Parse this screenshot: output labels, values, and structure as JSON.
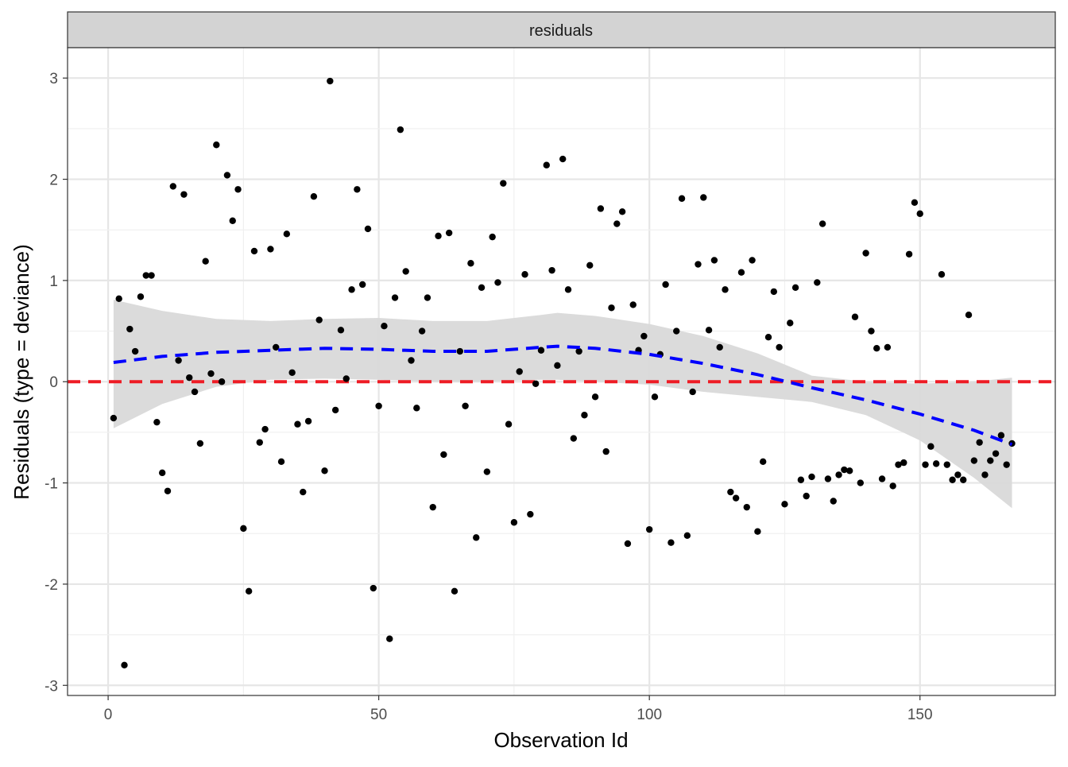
{
  "chart_data": {
    "type": "scatter",
    "facet_label": "residuals",
    "xlabel": "Observation Id",
    "ylabel": "Residuals (type = deviance)",
    "xlim": [
      -7.5,
      175
    ],
    "ylim": [
      -3.1,
      3.3
    ],
    "x_ticks": [
      0,
      50,
      100,
      150
    ],
    "x_tick_labels": [
      "0",
      "50",
      "100",
      "150"
    ],
    "y_ticks": [
      -3,
      -2,
      -1,
      0,
      1,
      2,
      3
    ],
    "y_tick_labels": [
      "-3",
      "-2",
      "-1",
      "0",
      "1",
      "2",
      "3"
    ],
    "grid": true,
    "reference_line": {
      "y": 0,
      "color": "#ee1c25",
      "style": "dashed"
    },
    "smooth_color": "#0000ff",
    "point_color": "#000000",
    "band_color": "#d9d9d9",
    "points_y": [
      -0.36,
      0.82,
      -2.8,
      0.52,
      0.3,
      0.84,
      1.05,
      1.05,
      -0.4,
      -0.9,
      -1.08,
      1.93,
      0.21,
      1.85,
      0.04,
      -0.1,
      -0.61,
      1.19,
      0.08,
      2.34,
      0.0,
      2.04,
      1.59,
      1.9,
      -1.45,
      -2.07,
      1.29,
      -0.6,
      -0.47,
      1.31,
      0.34,
      -0.79,
      1.46,
      0.09,
      -0.42,
      -1.09,
      -0.39,
      1.83,
      0.61,
      -0.88,
      2.97,
      -0.28,
      0.51,
      0.03,
      0.91,
      1.9,
      0.96,
      1.51,
      -2.04,
      -0.24,
      0.55,
      -2.54,
      0.83,
      2.49,
      1.09,
      0.21,
      -0.26,
      0.5,
      0.83,
      -1.24,
      1.44,
      -0.72,
      1.47,
      -2.07,
      0.3,
      -0.24,
      1.17,
      -1.54,
      0.93,
      -0.89,
      1.43,
      0.98,
      1.96,
      -0.42,
      -1.39,
      0.1,
      1.06,
      -1.31,
      -0.02,
      0.31,
      2.14,
      1.1,
      0.16,
      2.2,
      0.91,
      -0.56,
      0.3,
      -0.33,
      1.15,
      -0.15,
      1.71,
      -0.69,
      0.73,
      1.56,
      1.68,
      -1.6,
      0.76,
      0.31,
      0.45,
      -1.46,
      -0.15,
      0.27,
      0.96,
      -1.59,
      0.5,
      1.81,
      -1.52,
      -0.1,
      1.16,
      1.82,
      0.51,
      1.2,
      0.34,
      0.91,
      -1.09,
      -1.15,
      1.08,
      -1.24,
      1.2,
      -1.48,
      -0.79,
      0.44,
      0.89,
      0.34,
      -1.21,
      0.58,
      0.93,
      -0.97,
      -1.13,
      -0.94,
      0.98,
      1.56,
      -0.96,
      -1.18,
      -0.92,
      -0.87,
      -0.88,
      0.64,
      -1.0,
      1.27,
      0.5,
      0.33,
      -0.96,
      0.34,
      -1.03,
      -0.82,
      -0.8,
      1.26,
      1.77,
      1.66,
      -0.82,
      -0.64,
      -0.81,
      1.06,
      -0.82,
      -0.97,
      -0.92,
      -0.97,
      0.66,
      -0.78,
      -0.6,
      -0.92,
      -0.78,
      -0.71,
      -0.53,
      -0.82,
      -0.61
    ],
    "smooth": {
      "x": [
        1,
        10,
        20,
        30,
        40,
        50,
        60,
        70,
        80,
        83,
        90,
        100,
        110,
        120,
        130,
        140,
        150,
        160,
        167
      ],
      "y": [
        0.19,
        0.25,
        0.29,
        0.31,
        0.33,
        0.32,
        0.3,
        0.3,
        0.34,
        0.35,
        0.33,
        0.27,
        0.18,
        0.07,
        -0.06,
        -0.18,
        -0.32,
        -0.48,
        -0.62
      ],
      "upper": [
        0.81,
        0.7,
        0.62,
        0.6,
        0.62,
        0.63,
        0.6,
        0.6,
        0.66,
        0.68,
        0.65,
        0.57,
        0.45,
        0.28,
        0.06,
        0.0,
        -0.02,
        0.0,
        0.04
      ],
      "lower": [
        -0.46,
        -0.22,
        -0.05,
        0.02,
        0.03,
        0.02,
        0.0,
        0.0,
        0.02,
        0.02,
        0.0,
        -0.03,
        -0.1,
        -0.15,
        -0.2,
        -0.33,
        -0.58,
        -0.95,
        -1.25
      ]
    }
  }
}
